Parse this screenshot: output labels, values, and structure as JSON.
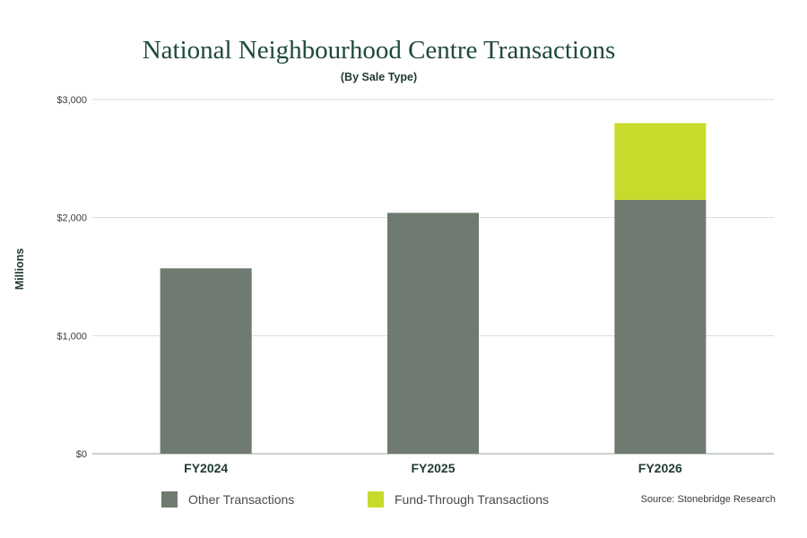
{
  "chart_data": {
    "type": "bar",
    "stacked": true,
    "title": "National Neighbourhood Centre Transactions",
    "subtitle": "(By Sale Type)",
    "ylabel": "Millions",
    "xlabel": "",
    "categories": [
      "FY2024",
      "FY2025",
      "FY2026"
    ],
    "series": [
      {
        "name": "Other Transactions",
        "color": "#6f7a70",
        "values": [
          1570,
          2040,
          2150
        ]
      },
      {
        "name": "Fund-Through Transactions",
        "color": "#c8da2b",
        "values": [
          0,
          0,
          650
        ]
      }
    ],
    "ylim": [
      0,
      3000
    ],
    "yticks": [
      0,
      1000,
      2000,
      3000
    ],
    "ytick_labels": [
      "$0",
      "$1,000",
      "$2,000",
      "$3,000"
    ],
    "grid": true,
    "legend_placement": "bottom",
    "source": "Source: Stonebridge Research"
  }
}
